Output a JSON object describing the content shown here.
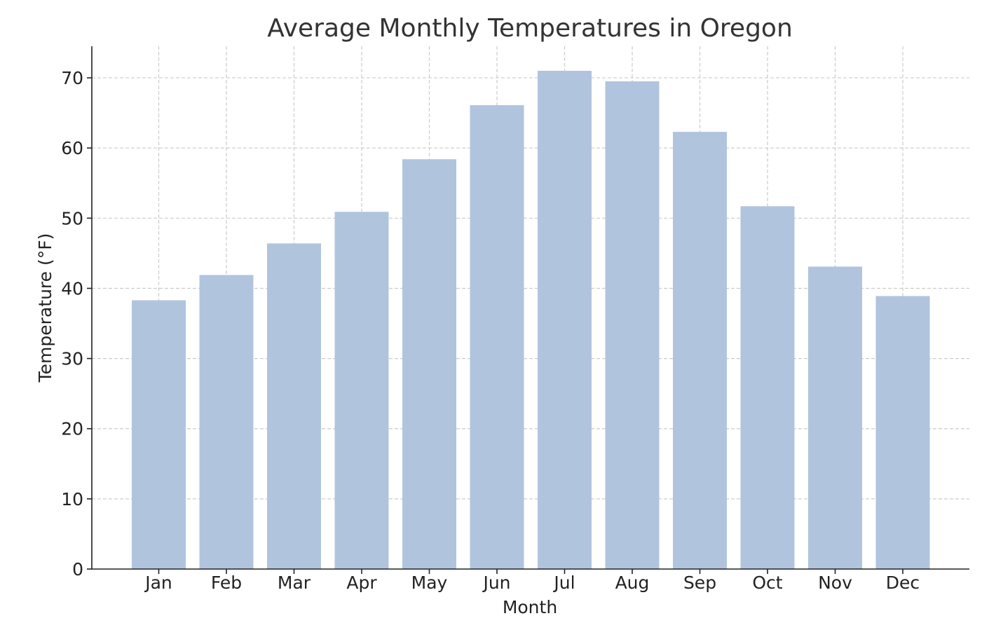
{
  "chart_data": {
    "type": "bar",
    "title": "Average Monthly Temperatures in Oregon",
    "xlabel": "Month",
    "ylabel": "Temperature (°F)",
    "categories": [
      "Jan",
      "Feb",
      "Mar",
      "Apr",
      "May",
      "Jun",
      "Jul",
      "Aug",
      "Sep",
      "Oct",
      "Nov",
      "Dec"
    ],
    "values": [
      38.3,
      41.9,
      46.4,
      50.9,
      58.4,
      66.1,
      71.0,
      69.5,
      62.3,
      51.7,
      43.1,
      38.9
    ],
    "yticks": [
      0,
      10,
      20,
      30,
      40,
      50,
      60,
      70
    ],
    "ylim": [
      0,
      74.5
    ],
    "grid": true,
    "bar_color": "#b0c4de"
  }
}
